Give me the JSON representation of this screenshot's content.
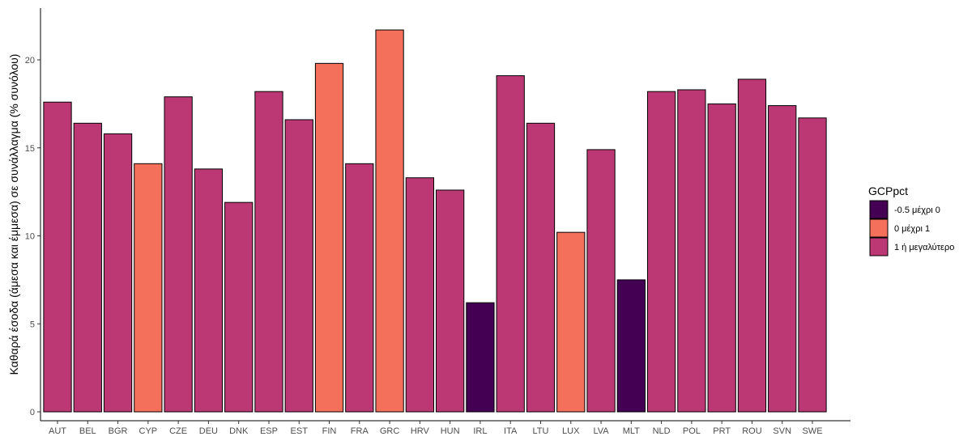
{
  "chart_data": {
    "type": "bar",
    "title": "",
    "xlabel": "",
    "ylabel": "Καθαρά έσοδα (άμεσα και έμμεσα) σε συνάλλαγμα (% συνόλου)",
    "ylim": [
      0,
      22
    ],
    "yticks": [
      0,
      5,
      10,
      15,
      20
    ],
    "grid": false,
    "legend_position": "right",
    "categories": [
      "AUT",
      "BEL",
      "BGR",
      "CYP",
      "CZE",
      "DEU",
      "DNK",
      "ESP",
      "EST",
      "FIN",
      "FRA",
      "GRC",
      "HRV",
      "HUN",
      "IRL",
      "ITA",
      "LTU",
      "LUX",
      "LVA",
      "MLT",
      "NLD",
      "POL",
      "PRT",
      "ROU",
      "SVN",
      "SWE"
    ],
    "values": [
      17.6,
      16.4,
      15.8,
      14.1,
      17.9,
      13.8,
      11.9,
      18.2,
      16.6,
      19.8,
      14.1,
      21.7,
      13.3,
      12.6,
      6.2,
      19.1,
      16.4,
      10.2,
      14.9,
      7.5,
      18.2,
      18.3,
      17.5,
      18.9,
      17.4,
      16.7
    ],
    "groups": [
      2,
      2,
      2,
      1,
      2,
      2,
      2,
      2,
      2,
      1,
      2,
      1,
      2,
      2,
      0,
      2,
      2,
      1,
      2,
      0,
      2,
      2,
      2,
      2,
      2,
      2
    ],
    "legend": {
      "title": "GCPpct",
      "entries": [
        {
          "label": "-0.5 μέχρι 0",
          "color": "#440154"
        },
        {
          "label": "0 μέχρι 1",
          "color": "#F4705B"
        },
        {
          "label": "1 ή μεγαλύτερο",
          "color": "#BC3874"
        }
      ]
    }
  }
}
